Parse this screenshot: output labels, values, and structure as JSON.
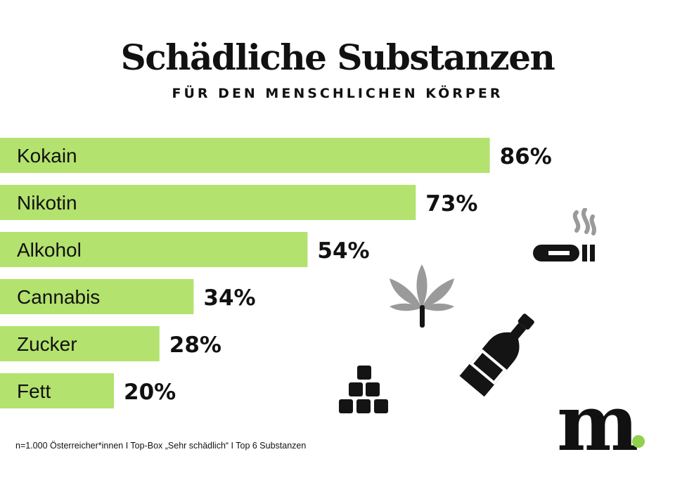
{
  "title": "Schädliche Substanzen",
  "subtitle": "FÜR DEN MENSCHLICHEN KÖRPER",
  "footnote": "n=1.000 Österreicher*innen I Top-Box „Sehr schädlich“ I Top 6 Substanzen",
  "logo": {
    "letter": "m"
  },
  "colors": {
    "bar": "#b3e26e",
    "text": "#111111",
    "icon_dark": "#141414",
    "icon_gray": "#9a9a9a",
    "logo_dot": "#8fd14f"
  },
  "icons": [
    "cigarette-icon",
    "cannabis-leaf-icon",
    "bottle-icon",
    "sugar-cubes-icon"
  ],
  "chart_data": {
    "type": "bar",
    "orientation": "horizontal",
    "title": "Schädliche Substanzen",
    "subtitle": "FÜR DEN MENSCHLICHEN KÖRPER",
    "categories": [
      "Kokain",
      "Nikotin",
      "Alkohol",
      "Cannabis",
      "Zucker",
      "Fett"
    ],
    "values": [
      86,
      73,
      54,
      34,
      28,
      20
    ],
    "value_labels": [
      "86%",
      "73%",
      "54%",
      "34%",
      "28%",
      "20%"
    ],
    "unit": "%",
    "xlim": [
      0,
      100
    ]
  }
}
